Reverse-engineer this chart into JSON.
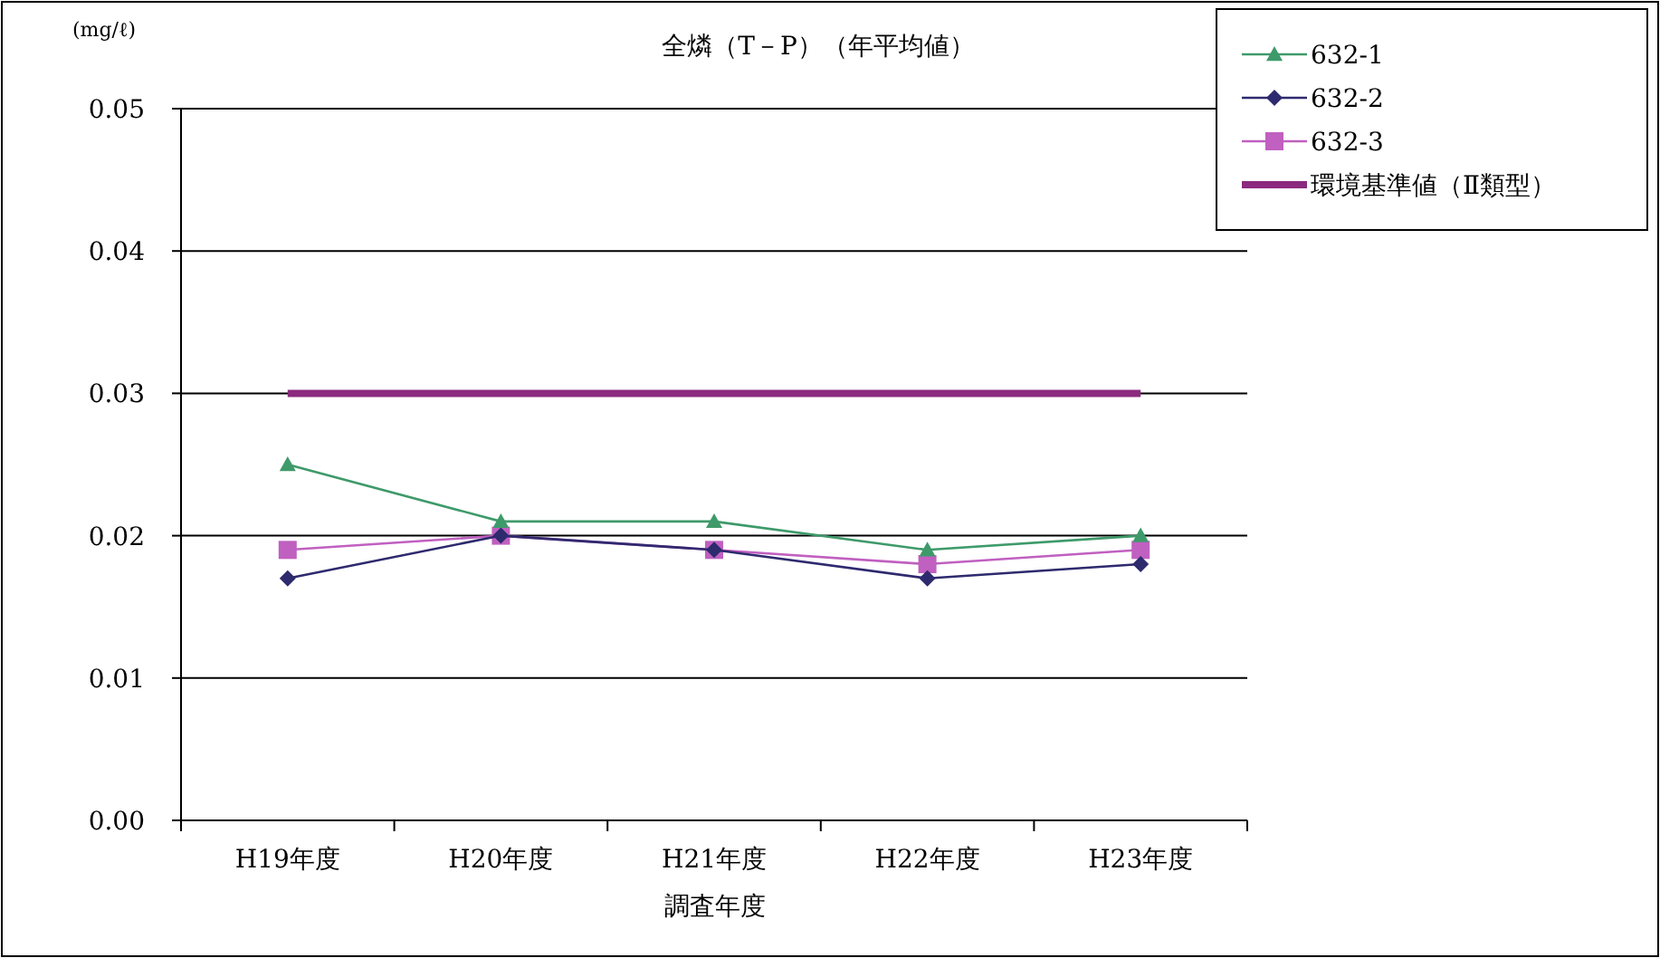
{
  "chart_data": {
    "type": "line",
    "title": "全燐（T－P）（年平均値）",
    "ylabel": "(mg/ℓ)",
    "xlabel": "調査年度",
    "categories": [
      "H19年度",
      "H20年度",
      "H21年度",
      "H22年度",
      "H23年度"
    ],
    "series": [
      {
        "name": "632-1",
        "color": "#3e9a6a",
        "marker": "triangle",
        "values": [
          0.025,
          0.021,
          0.021,
          0.019,
          0.02
        ]
      },
      {
        "name": "632-2",
        "color": "#2e2a6e",
        "marker": "diamond",
        "values": [
          0.017,
          0.02,
          0.019,
          0.017,
          0.018
        ]
      },
      {
        "name": "632-3",
        "color": "#c060c0",
        "marker": "square",
        "values": [
          0.019,
          0.02,
          0.019,
          0.018,
          0.019
        ]
      },
      {
        "name": "環境基準値（Ⅱ類型）",
        "color": "#8b2a7e",
        "marker": "none",
        "values": [
          0.03,
          0.03,
          0.03,
          0.03,
          0.03
        ]
      }
    ],
    "ylim": [
      0,
      0.05
    ],
    "yticks": [
      {
        "value": 0,
        "label": "0.00"
      },
      {
        "value": 0.01,
        "label": "0.01"
      },
      {
        "value": 0.02,
        "label": "0.02"
      },
      {
        "value": 0.03,
        "label": "0.03"
      },
      {
        "value": 0.04,
        "label": "0.04"
      },
      {
        "value": 0.05,
        "label": "0.05"
      }
    ],
    "grid": "y",
    "legend": "top right"
  }
}
